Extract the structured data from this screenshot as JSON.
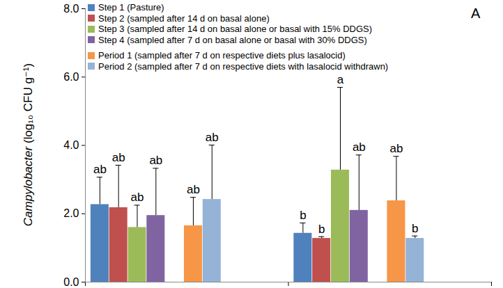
{
  "chart_data": {
    "type": "bar",
    "y_label": "Campylobacter (log₁₀ CFU g⁻¹)",
    "panel_label": "A",
    "categories": [
      null,
      null
    ],
    "series": [
      {
        "name": "Step 1 (Pasture)",
        "color": "#4F81BD",
        "values": [
          2.27,
          1.43
        ],
        "error": [
          0.8,
          0.3
        ],
        "letters": [
          "ab",
          "b"
        ]
      },
      {
        "name": "Step 2 (sampled after 14 d on basal alone)",
        "color": "#C0504D",
        "values": [
          2.18,
          1.28
        ],
        "error": [
          1.24,
          0.05
        ],
        "letters": [
          "ab",
          "b"
        ]
      },
      {
        "name": "Step 3 (sampled after 14 d on basal alone or basal with 15% DDGS)",
        "color": "#9BBB59",
        "values": [
          1.6,
          3.28
        ],
        "error": [
          0.65,
          2.42
        ],
        "letters": [
          "ab",
          "a"
        ]
      },
      {
        "name": "Step 4 (sampled after 7 d on basal alone or basal with 30% DDGS)",
        "color": "#8064A2",
        "values": [
          1.95,
          2.1
        ],
        "error": [
          1.38,
          1.62
        ],
        "letters": [
          "ab",
          "ab"
        ]
      },
      {
        "name": "Period 1 (sampled after 7 d on respective diets plus lasalocid)",
        "color": "#F79646",
        "values": [
          1.65,
          2.38
        ],
        "error": [
          0.83,
          1.3
        ],
        "letters": [
          "ab",
          "ab"
        ]
      },
      {
        "name": "Period 2 (sampled after 7 d on respective diets with lasalocid withdrawn)",
        "color": "#95B3D7",
        "values": [
          2.42,
          1.28
        ],
        "error": [
          1.59,
          0.07
        ],
        "letters": [
          "ab",
          "b"
        ]
      }
    ],
    "ylim": [
      0,
      8
    ],
    "yticks": [
      {
        "value": 0,
        "label": "0.0"
      },
      {
        "value": 2,
        "label": "2.0"
      },
      {
        "value": 4,
        "label": "4.0"
      },
      {
        "value": 6,
        "label": "6.0"
      },
      {
        "value": 8,
        "label": "8.0"
      }
    ],
    "legend": "top-left",
    "grid": false
  }
}
